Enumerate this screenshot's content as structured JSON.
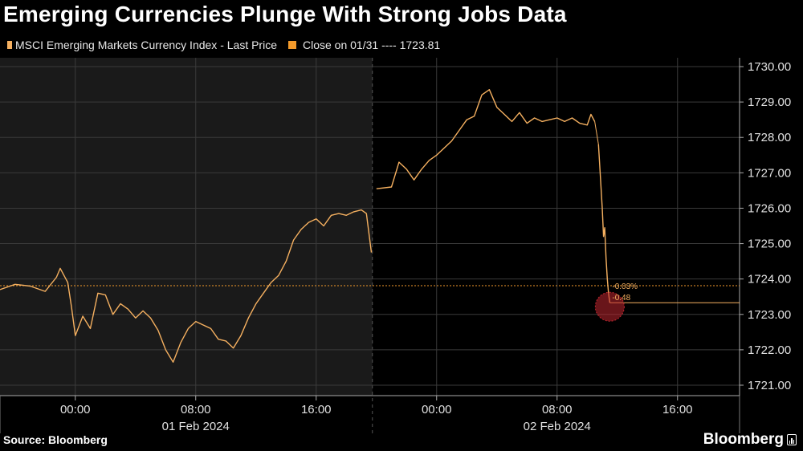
{
  "header": {
    "title": "Emerging Currencies Plunge With Strong Jobs Data"
  },
  "legend": {
    "series_label": "MSCI Emerging Markets Currency Index - Last Price",
    "close_label": "Close on 01/31 ---- 1723.81"
  },
  "footer": {
    "source": "Source: Bloomberg",
    "brand": "Bloomberg"
  },
  "colors": {
    "series": "#f5b060",
    "close_line": "#f39a2b",
    "marker": "#c0262f",
    "shaded_bg": "#1a1a1a",
    "grid": "#3a3a3a"
  },
  "chart_data": {
    "type": "line",
    "title": "Emerging Currencies Plunge With Strong Jobs Data",
    "y_ticks": [
      1721.0,
      1722.0,
      1723.0,
      1724.0,
      1725.0,
      1726.0,
      1727.0,
      1728.0,
      1729.0,
      1730.0
    ],
    "ylim": [
      1720.7,
      1730.3
    ],
    "x_tick_labels": [
      "00:00",
      "08:00",
      "16:00",
      "00:00",
      "08:00",
      "16:00"
    ],
    "date_labels": [
      "01 Feb 2024",
      "02 Feb 2024"
    ],
    "grid": true,
    "reference_line": {
      "label": "Close on 01/31",
      "value": 1723.81
    },
    "annotations": [
      "-0.03%",
      "-0.48"
    ],
    "series": [
      {
        "sessions": [
          [
            [
              "01/31 19:00",
              1723.7
            ],
            [
              "01/31 20:00",
              1723.85
            ],
            [
              "01/31 21:00",
              1723.8
            ],
            [
              "01/31 22:00",
              1723.65
            ],
            [
              "01/31 22:45",
              1724.05
            ],
            [
              "01/31 23:00",
              1724.3
            ],
            [
              "01/31 23:30",
              1723.9
            ],
            [
              "01/31 23:45",
              1723.2
            ],
            [
              "02/01 00:00",
              1722.4
            ],
            [
              "02/01 00:30",
              1722.95
            ],
            [
              "02/01 01:00",
              1722.6
            ],
            [
              "02/01 01:30",
              1723.6
            ],
            [
              "02/01 02:00",
              1723.55
            ],
            [
              "02/01 02:30",
              1723.0
            ],
            [
              "02/01 03:00",
              1723.3
            ],
            [
              "02/01 03:30",
              1723.15
            ],
            [
              "02/01 04:00",
              1722.9
            ],
            [
              "02/01 04:30",
              1723.1
            ],
            [
              "02/01 05:00",
              1722.9
            ],
            [
              "02/01 05:30",
              1722.55
            ],
            [
              "02/01 06:00",
              1722.0
            ],
            [
              "02/01 06:30",
              1721.65
            ],
            [
              "02/01 07:00",
              1722.2
            ],
            [
              "02/01 07:30",
              1722.6
            ],
            [
              "02/01 08:00",
              1722.8
            ],
            [
              "02/01 08:30",
              1722.7
            ],
            [
              "02/01 09:00",
              1722.6
            ],
            [
              "02/01 09:30",
              1722.3
            ],
            [
              "02/01 10:00",
              1722.25
            ],
            [
              "02/01 10:30",
              1722.05
            ],
            [
              "02/01 11:00",
              1722.4
            ],
            [
              "02/01 11:30",
              1722.9
            ],
            [
              "02/01 12:00",
              1723.3
            ],
            [
              "02/01 12:30",
              1723.6
            ],
            [
              "02/01 13:00",
              1723.9
            ],
            [
              "02/01 13:30",
              1724.1
            ],
            [
              "02/01 14:00",
              1724.5
            ],
            [
              "02/01 14:30",
              1725.1
            ],
            [
              "02/01 15:00",
              1725.4
            ],
            [
              "02/01 15:30",
              1725.6
            ],
            [
              "02/01 16:00",
              1725.7
            ],
            [
              "02/01 16:30",
              1725.5
            ],
            [
              "02/01 17:00",
              1725.8
            ],
            [
              "02/01 17:30",
              1725.85
            ],
            [
              "02/01 18:00",
              1725.8
            ],
            [
              "02/01 18:30",
              1725.9
            ],
            [
              "02/01 19:00",
              1725.95
            ],
            [
              "02/01 19:20",
              1725.85
            ],
            [
              "02/01 19:40",
              1724.75
            ]
          ],
          [
            [
              "02/01 20:00",
              1726.55
            ],
            [
              "02/01 21:00",
              1726.6
            ],
            [
              "02/01 21:30",
              1727.3
            ],
            [
              "02/01 22:00",
              1727.1
            ],
            [
              "02/01 22:30",
              1726.8
            ],
            [
              "02/01 23:00",
              1727.1
            ],
            [
              "02/01 23:30",
              1727.35
            ],
            [
              "02/02 00:00",
              1727.5
            ],
            [
              "02/02 00:30",
              1727.7
            ],
            [
              "02/02 01:00",
              1727.9
            ],
            [
              "02/02 01:30",
              1728.2
            ],
            [
              "02/02 02:00",
              1728.5
            ],
            [
              "02/02 02:30",
              1728.6
            ],
            [
              "02/02 03:00",
              1729.2
            ],
            [
              "02/02 03:30",
              1729.35
            ],
            [
              "02/02 04:00",
              1728.85
            ],
            [
              "02/02 04:30",
              1728.65
            ],
            [
              "02/02 05:00",
              1728.45
            ],
            [
              "02/02 05:30",
              1728.7
            ],
            [
              "02/02 06:00",
              1728.4
            ],
            [
              "02/02 06:30",
              1728.55
            ],
            [
              "02/02 07:00",
              1728.45
            ],
            [
              "02/02 07:30",
              1728.5
            ],
            [
              "02/02 08:00",
              1728.55
            ],
            [
              "02/02 08:30",
              1728.45
            ],
            [
              "02/02 09:00",
              1728.55
            ],
            [
              "02/02 09:30",
              1728.4
            ],
            [
              "02/02 10:00",
              1728.35
            ],
            [
              "02/02 10:15",
              1728.65
            ],
            [
              "02/02 10:30",
              1728.45
            ]
          ],
          [
            [
              "02/02 10:45",
              1727.8
            ],
            [
              "02/02 11:00",
              1726.0
            ],
            [
              "02/02 11:05",
              1725.2
            ],
            [
              "02/02 11:10",
              1725.45
            ],
            [
              "02/02 11:15",
              1724.6
            ],
            [
              "02/02 11:20",
              1724.0
            ],
            [
              "02/02 11:25",
              1723.6
            ],
            [
              "02/02 11:30",
              1723.33
            ]
          ]
        ]
      }
    ]
  }
}
